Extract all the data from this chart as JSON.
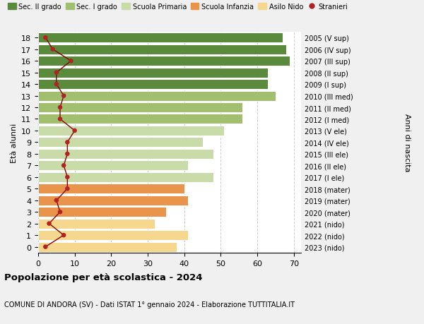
{
  "ages": [
    0,
    1,
    2,
    3,
    4,
    5,
    6,
    7,
    8,
    9,
    10,
    11,
    12,
    13,
    14,
    15,
    16,
    17,
    18
  ],
  "right_labels": [
    "2023 (nido)",
    "2022 (nido)",
    "2021 (nido)",
    "2020 (mater)",
    "2019 (mater)",
    "2018 (mater)",
    "2017 (I ele)",
    "2016 (II ele)",
    "2015 (III ele)",
    "2014 (IV ele)",
    "2013 (V ele)",
    "2012 (I med)",
    "2011 (II med)",
    "2010 (III med)",
    "2009 (I sup)",
    "2008 (II sup)",
    "2007 (III sup)",
    "2006 (IV sup)",
    "2005 (V sup)"
  ],
  "bar_values": [
    38,
    41,
    32,
    35,
    41,
    40,
    48,
    41,
    48,
    45,
    51,
    56,
    56,
    65,
    63,
    63,
    69,
    68,
    67
  ],
  "bar_colors": [
    "#f5d78e",
    "#f5d78e",
    "#f5d78e",
    "#e8944a",
    "#e8944a",
    "#e8944a",
    "#c8dba8",
    "#c8dba8",
    "#c8dba8",
    "#c8dba8",
    "#c8dba8",
    "#a0c070",
    "#a0c070",
    "#a0c070",
    "#5a8a3c",
    "#5a8a3c",
    "#5a8a3c",
    "#5a8a3c",
    "#5a8a3c"
  ],
  "stranieri_values": [
    2,
    7,
    3,
    6,
    5,
    8,
    8,
    7,
    8,
    8,
    10,
    6,
    6,
    7,
    5,
    5,
    9,
    4,
    2
  ],
  "legend_labels": [
    "Sec. II grado",
    "Sec. I grado",
    "Scuola Primaria",
    "Scuola Infanzia",
    "Asilo Nido",
    "Stranieri"
  ],
  "legend_colors": [
    "#5a8a3c",
    "#a0c070",
    "#c8dba8",
    "#e8944a",
    "#f5d78e",
    "#b22222"
  ],
  "ylabel_left": "Età alunni",
  "ylabel_right": "Anni di nascita",
  "title": "Popolazione per età scolastica - 2024",
  "subtitle": "COMUNE DI ANDORA (SV) - Dati ISTAT 1° gennaio 2024 - Elaborazione TUTTITALIA.IT",
  "xlim": [
    0,
    72
  ],
  "xticks": [
    0,
    10,
    20,
    30,
    40,
    50,
    60,
    70
  ],
  "background_color": "#f0f0f0",
  "bar_background": "#ffffff",
  "grid_color": "#cccccc",
  "stranieri_color": "#b22222",
  "stranieri_linecolor": "#8b0000"
}
